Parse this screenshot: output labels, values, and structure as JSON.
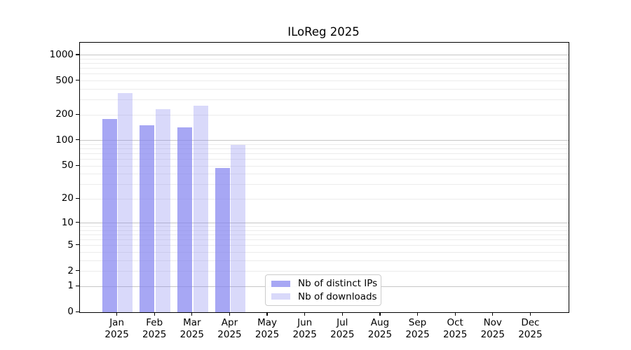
{
  "chart_data": {
    "type": "bar",
    "title": "ILoReg 2025",
    "categories": [
      "Jan",
      "Feb",
      "Mar",
      "Apr",
      "May",
      "Jun",
      "Jul",
      "Aug",
      "Sep",
      "Oct",
      "Nov",
      "Dec"
    ],
    "year_label": "2025",
    "series": [
      {
        "name": "Nb of distinct IPs",
        "values": [
          178,
          151,
          142,
          47,
          null,
          null,
          null,
          null,
          null,
          null,
          null,
          null
        ]
      },
      {
        "name": "Nb of downloads",
        "values": [
          359,
          232,
          256,
          89,
          null,
          null,
          null,
          null,
          null,
          null,
          null,
          null
        ]
      }
    ],
    "y_scale": "log1p",
    "y_ticks": [
      0,
      1,
      2,
      5,
      10,
      20,
      50,
      100,
      200,
      500,
      1000
    ],
    "ylim": [
      0,
      1400
    ],
    "xlabel": "",
    "ylabel": "",
    "grid": true,
    "legend_position": "lower center",
    "colors": {
      "bar_base_rgb": [
        130,
        130,
        240
      ],
      "series_alpha": [
        0.7,
        0.3
      ],
      "grid_major": "#c6c6c6",
      "grid_minor": "#ececec",
      "axis": "#000000",
      "background": "#ffffff"
    }
  }
}
